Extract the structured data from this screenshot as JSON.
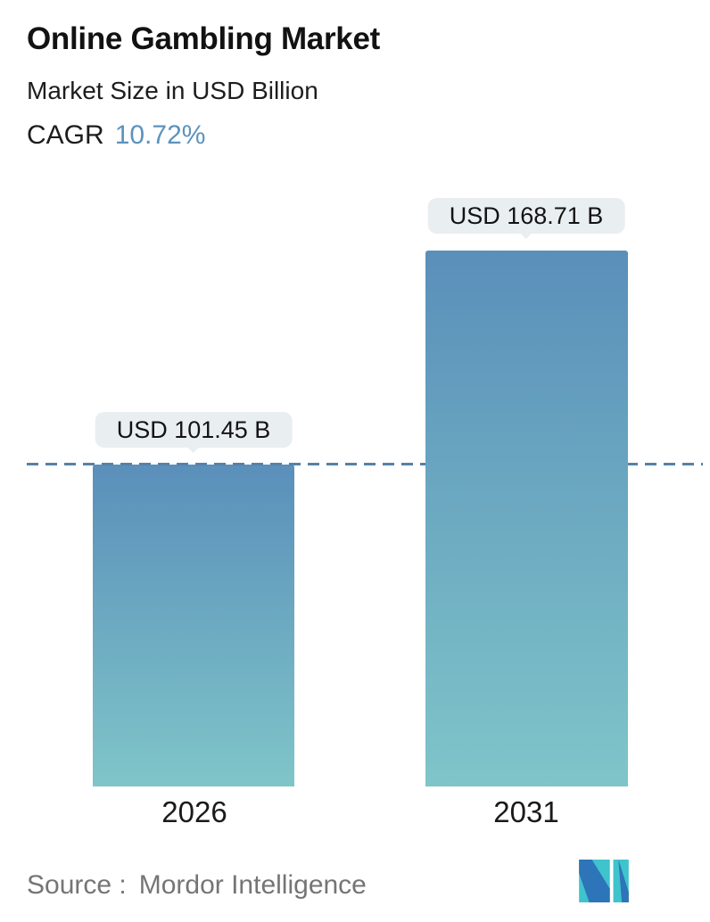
{
  "header": {
    "title": "Online Gambling Market",
    "subtitle": "Market Size in USD Billion",
    "cagr_label": "CAGR",
    "cagr_value": "10.72%"
  },
  "chart_data": {
    "type": "bar",
    "categories": [
      "2026",
      "2031"
    ],
    "values": [
      101.45,
      168.71
    ],
    "value_labels": [
      "USD 101.45 B",
      "USD 168.71 B"
    ],
    "title": "Online Gambling Market",
    "subtitle": "Market Size in USD Billion",
    "unit": "USD Billion",
    "cagr_percent": 10.72,
    "ylim": [
      0,
      170
    ],
    "grid": false,
    "legend": false,
    "bar_gradient": [
      "#5a8fba",
      "#7fc5c9"
    ],
    "reference_line": {
      "style": "dashed",
      "color": "#5581a8",
      "value": 101.45,
      "note": "horizontal dashed line across full chart width at the 2026 bar top"
    }
  },
  "footer": {
    "source_label": "Source :",
    "source_name": "Mordor Intelligence",
    "logo": "mordor-intelligence-logo"
  },
  "colors": {
    "accent": "#5b93be",
    "bar_top": "#5a8fba",
    "bar_bottom": "#7fc5c9",
    "dashed_line": "#5581a8",
    "bubble_bg": "#e9eef0",
    "text_dark": "#161616",
    "source_gray": "#757575",
    "logo_teal": "#3fc3cc",
    "logo_blue": "#2d74b8"
  }
}
